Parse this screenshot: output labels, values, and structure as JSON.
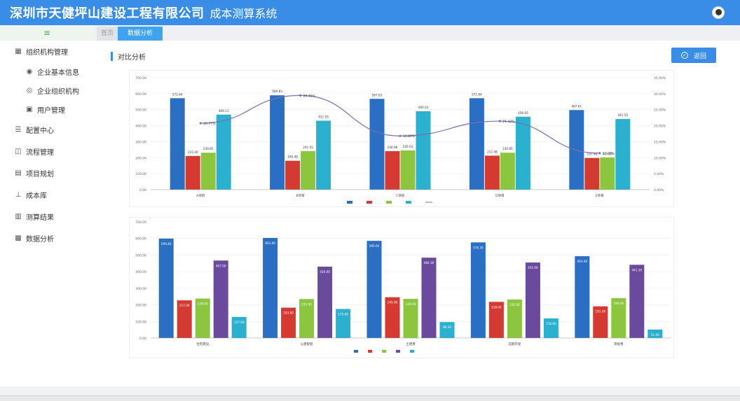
{
  "header": {
    "company": "深圳市天健坪山建设工程有限公司",
    "system": "成本测算系统"
  },
  "sidebar": {
    "collapse_icon": "≡",
    "items": [
      {
        "label": "组织机构管理",
        "icon": "grid-icon",
        "level": "top"
      },
      {
        "label": "企业基本信息",
        "icon": "info-icon",
        "level": "sub"
      },
      {
        "label": "企业组织机构",
        "icon": "org-icon",
        "level": "sub"
      },
      {
        "label": "用户管理",
        "icon": "user-icon",
        "level": "sub"
      },
      {
        "label": "配置中心",
        "icon": "list-icon",
        "level": "top"
      },
      {
        "label": "流程管理",
        "icon": "flow-icon",
        "level": "top"
      },
      {
        "label": "项目规划",
        "icon": "plan-icon",
        "level": "top"
      },
      {
        "label": "成本库",
        "icon": "tree-icon",
        "level": "top"
      },
      {
        "label": "测算结果",
        "icon": "chart-icon",
        "level": "top"
      },
      {
        "label": "数据分析",
        "icon": "data-icon",
        "level": "top"
      }
    ]
  },
  "tabs": [
    {
      "label": "首页"
    },
    {
      "label": "数据分析"
    }
  ],
  "page": {
    "title": "对比分析",
    "back_label": "返回",
    "back_icon": "check-circle-icon"
  },
  "colors": {
    "blue": "#2a6fc4",
    "red": "#d43a32",
    "green": "#8cc63f",
    "purple": "#6a4a9c",
    "cyan": "#2bb1cf",
    "line": "#7e6bb0"
  },
  "chart_data": [
    {
      "type": "bar",
      "categories": [
        "A项目",
        "B项目",
        "C项目",
        "D项目",
        "E项目"
      ],
      "series": [
        {
          "name": "",
          "values": [
            571.64,
            589.83,
            567.63,
            571.64,
            497.61
          ],
          "color": "#2a6fc4"
        },
        {
          "name": "",
          "values": [
            210.39,
            180.48,
            240.98,
            212.48,
            197.98
          ],
          "color": "#d43a32"
        },
        {
          "name": "",
          "values": [
            230.85,
            241.05,
            245.03,
            230.85,
            201.05
          ],
          "color": "#8cc63f"
        },
        {
          "name": "",
          "values": [
            469.13,
            431.05,
            490.03,
            456.05,
            441.55
          ],
          "color": "#2bb1cf"
        }
      ],
      "line_series": {
        "name": "",
        "values": [
          20.77,
          29.45,
          16.8,
          21.42,
          11.41
        ],
        "color": "#7e6bb0"
      },
      "ylim": [
        0,
        700
      ],
      "yticks": [
        "0.00",
        "100.00",
        "200.00",
        "300.00",
        "400.00",
        "500.00",
        "600.00",
        "700.00"
      ],
      "y2lim": [
        0,
        35
      ],
      "y2ticks": [
        "0.00%",
        "5.00%",
        "10.00%",
        "15.00%",
        "20.00%",
        "25.00%",
        "30.00%",
        "35.00%"
      ],
      "legend": "bottom"
    },
    {
      "type": "bar",
      "categories": [
        "住宅建设",
        "公建配套",
        "土建费",
        "前期开发",
        "审批费"
      ],
      "series": [
        {
          "name": "",
          "values": [
            599.4,
            603.0,
            585.6,
            576.3,
            493.0
          ],
          "color": "#2a6fc4"
        },
        {
          "name": "",
          "values": [
            227.0,
            183.0,
            245.9,
            218.0,
            191.0
          ],
          "color": "#d43a32"
        },
        {
          "name": "",
          "values": [
            238.0,
            235.0,
            236.0,
            232.0,
            240.0
          ],
          "color": "#8cc63f"
        },
        {
          "name": "",
          "values": [
            467.0,
            430.0,
            484.3,
            455.0,
            441.3
          ],
          "color": "#6a4a9c"
        },
        {
          "name": "",
          "values": [
            127.0,
            175.0,
            96.3,
            118.0,
            51.4
          ],
          "color": "#2bb1cf"
        }
      ],
      "ylim": [
        0,
        700
      ],
      "yticks": [
        "0.00",
        "100.00",
        "200.00",
        "300.00",
        "400.00",
        "500.00",
        "600.00",
        "700.00"
      ],
      "legend": "bottom"
    }
  ]
}
